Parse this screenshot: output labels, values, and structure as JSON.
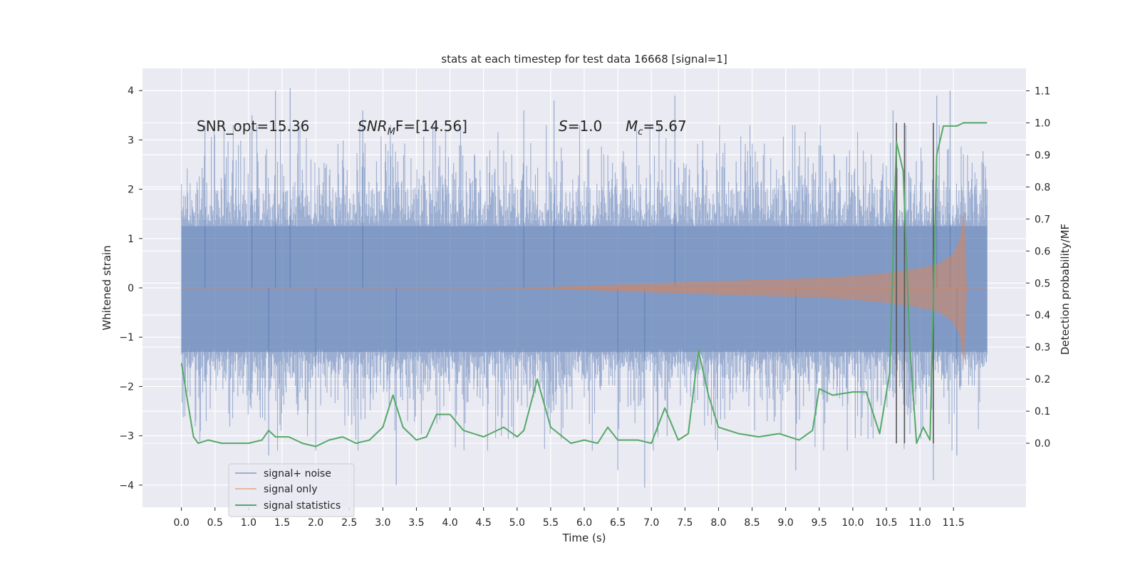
{
  "chart_data": {
    "type": "line",
    "title": "stats at each timestep for test data 16668 [signal=1]",
    "xlabel": "Time (s)",
    "ylabel": "Whitened strain",
    "y2label": "Detection probability/MF",
    "xlim": [
      -0.58,
      12.58
    ],
    "ylim": [
      -4.45,
      4.45
    ],
    "y2lim": [
      -0.2,
      1.17
    ],
    "xticks": [
      0.0,
      0.5,
      1.0,
      1.5,
      2.0,
      2.5,
      3.0,
      3.5,
      4.0,
      4.5,
      5.0,
      5.5,
      6.0,
      6.5,
      7.0,
      7.5,
      8.0,
      8.5,
      9.0,
      9.5,
      10.0,
      10.5,
      11.0,
      11.5
    ],
    "xtick_labels": [
      "0.0",
      "0.5",
      "1.0",
      "1.5",
      "2.0",
      "2.5",
      "3.0",
      "3.5",
      "4.0",
      "4.5",
      "5.0",
      "5.5",
      "6.0",
      "6.5",
      "7.0",
      "7.5",
      "8.0",
      "8.5",
      "9.0",
      "9.5",
      "10.0",
      "10.5",
      "11.0",
      "11.5"
    ],
    "yticks": [
      -4,
      -3,
      -2,
      -1,
      0,
      1,
      2,
      3,
      4
    ],
    "ytick_labels": [
      "−4",
      "−3",
      "−2",
      "−1",
      "0",
      "1",
      "2",
      "3",
      "4"
    ],
    "y2ticks": [
      0.0,
      0.1,
      0.2,
      0.3,
      0.4,
      0.5,
      0.6,
      0.7,
      0.8,
      0.9,
      1.0,
      1.1
    ],
    "y2tick_labels": [
      "0.0",
      "0.1",
      "0.2",
      "0.3",
      "0.4",
      "0.5",
      "0.6",
      "0.7",
      "0.8",
      "0.9",
      "1.0",
      "1.1"
    ],
    "annotations": {
      "snr_opt": "SNR_opt=15.36",
      "snr_mf_main": "SNR",
      "snr_mf_sub": "M",
      "snr_mf_rest": "F=[14.56]",
      "s_var": "S",
      "s_rest": "=1.0",
      "mc_main": "M",
      "mc_sub": "c",
      "mc_rest": "=5.67"
    },
    "legend": {
      "placement": "lower-left",
      "entries": [
        "signal+ noise",
        "signal only",
        "signal statistics"
      ]
    },
    "colors": {
      "noise": "#4c72b0",
      "signal": "#dd8452",
      "stats": "#55a868",
      "vlines": "#555555",
      "background": "#eaeaf2"
    },
    "series": [
      {
        "name": "signal+ noise",
        "x_range": [
          0.0,
          12.0
        ],
        "typical_envelope": [
          -1.9,
          1.9
        ],
        "peak_excursions": [
          {
            "x": 0.35,
            "y": 3.3
          },
          {
            "x": 1.05,
            "y": 3.5
          },
          {
            "x": 1.4,
            "y": 4.0
          },
          {
            "x": 1.62,
            "y": 4.05
          },
          {
            "x": 1.3,
            "y": -3.4
          },
          {
            "x": 2.0,
            "y": -3.3
          },
          {
            "x": 2.7,
            "y": 3.6
          },
          {
            "x": 3.2,
            "y": -4.0
          },
          {
            "x": 5.1,
            "y": 3.6
          },
          {
            "x": 5.55,
            "y": 3.8
          },
          {
            "x": 6.5,
            "y": -3.7
          },
          {
            "x": 6.9,
            "y": -4.05
          },
          {
            "x": 7.35,
            "y": 3.9
          },
          {
            "x": 9.15,
            "y": -3.7
          },
          {
            "x": 10.6,
            "y": 3.6
          },
          {
            "x": 11.2,
            "y": -3.9
          },
          {
            "x": 11.25,
            "y": 3.9
          },
          {
            "x": 11.45,
            "y": 4.0
          },
          {
            "x": 11.55,
            "y": -3.4
          }
        ]
      },
      {
        "name": "signal only",
        "x": [
          0.0,
          4.0,
          5.5,
          6.5,
          7.5,
          8.5,
          9.5,
          10.0,
          10.5,
          11.0,
          11.3,
          11.5,
          11.6,
          11.65,
          11.68,
          11.7,
          12.0
        ],
        "envelope": [
          0.0,
          0.0,
          0.02,
          0.07,
          0.12,
          0.16,
          0.2,
          0.24,
          0.3,
          0.4,
          0.5,
          0.7,
          1.0,
          1.6,
          0.9,
          0.0,
          0.0
        ]
      },
      {
        "name": "signal statistics",
        "x": [
          0.0,
          0.1,
          0.18,
          0.25,
          0.4,
          0.6,
          1.0,
          1.2,
          1.3,
          1.4,
          1.6,
          1.8,
          2.0,
          2.2,
          2.4,
          2.6,
          2.8,
          3.0,
          3.15,
          3.3,
          3.5,
          3.65,
          3.8,
          4.0,
          4.2,
          4.5,
          4.8,
          5.0,
          5.1,
          5.3,
          5.5,
          5.8,
          6.0,
          6.2,
          6.35,
          6.5,
          6.8,
          7.0,
          7.2,
          7.4,
          7.55,
          7.7,
          7.85,
          8.0,
          8.3,
          8.6,
          8.9,
          9.2,
          9.4,
          9.5,
          9.7,
          10.0,
          10.2,
          10.4,
          10.55,
          10.65,
          10.75,
          10.85,
          10.95,
          11.05,
          11.15,
          11.25,
          11.35,
          11.55,
          11.65,
          11.8,
          12.0
        ],
        "values": [
          0.25,
          0.12,
          0.02,
          0.0,
          0.01,
          0.0,
          0.0,
          0.01,
          0.04,
          0.02,
          0.02,
          0.0,
          -0.01,
          0.01,
          0.02,
          0.0,
          0.01,
          0.05,
          0.15,
          0.05,
          0.01,
          0.02,
          0.09,
          0.09,
          0.04,
          0.02,
          0.05,
          0.02,
          0.04,
          0.2,
          0.05,
          0.0,
          0.01,
          0.0,
          0.05,
          0.01,
          0.01,
          0.0,
          0.11,
          0.01,
          0.03,
          0.29,
          0.15,
          0.05,
          0.03,
          0.02,
          0.03,
          0.01,
          0.04,
          0.17,
          0.15,
          0.16,
          0.16,
          0.03,
          0.22,
          0.94,
          0.85,
          0.3,
          0.0,
          0.05,
          0.01,
          0.9,
          0.99,
          0.99,
          1.0,
          1.0,
          1.0
        ]
      }
    ],
    "vertical_lines_x": [
      10.65,
      10.77,
      11.2
    ],
    "vertical_lines_y2": [
      -0.0,
      1.0
    ],
    "grid": true
  }
}
